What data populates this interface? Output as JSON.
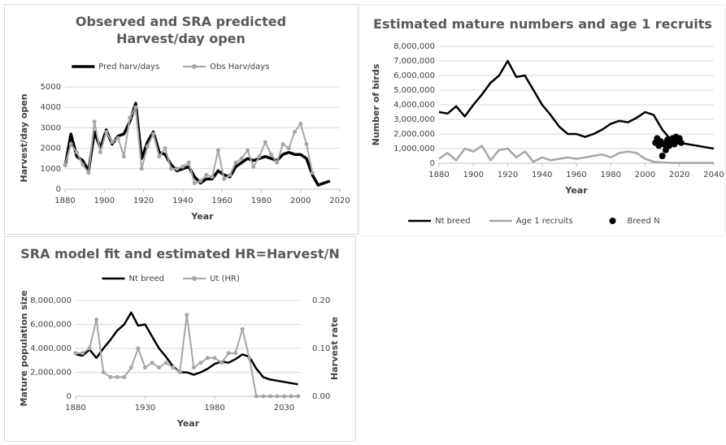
{
  "chart_data": [
    {
      "type": "line",
      "title": "Observed and SRA predicted Harvest/day open",
      "xlabel": "Year",
      "ylabel": "Harvest/day open",
      "x": [
        1880,
        1883,
        1886,
        1889,
        1892,
        1895,
        1898,
        1901,
        1904,
        1907,
        1910,
        1913,
        1916,
        1919,
        1922,
        1925,
        1928,
        1931,
        1934,
        1937,
        1940,
        1943,
        1946,
        1949,
        1952,
        1955,
        1958,
        1961,
        1964,
        1967,
        1970,
        1973,
        1976,
        1979,
        1982,
        1985,
        1988,
        1991,
        1994,
        1997,
        2000,
        2003,
        2006,
        2009,
        2012,
        2015
      ],
      "series": [
        {
          "name": "Pred harv/days",
          "color": "#000000",
          "line_width": 3.5,
          "values": [
            1100,
            2700,
            1600,
            1400,
            900,
            2800,
            2000,
            2900,
            2200,
            2600,
            2700,
            3300,
            4200,
            1500,
            2300,
            2800,
            1800,
            1700,
            1200,
            900,
            1000,
            1100,
            600,
            300,
            500,
            500,
            900,
            700,
            600,
            1100,
            1300,
            1500,
            1400,
            1500,
            1600,
            1500,
            1400,
            1700,
            1800,
            1700,
            1700,
            1500,
            700,
            200,
            300,
            400
          ]
        },
        {
          "name": "Obs Harv/days",
          "color": "#a6a6a6",
          "line_width": 2,
          "markers": true,
          "values": [
            1200,
            2200,
            1800,
            1200,
            800,
            3300,
            1800,
            2800,
            2300,
            2500,
            1600,
            3500,
            4000,
            1000,
            2100,
            2700,
            1600,
            2000,
            1000,
            1000,
            1100,
            1300,
            300,
            400,
            700,
            600,
            1900,
            500,
            700,
            1300,
            1500,
            1900,
            1100,
            1600,
            2300,
            1700,
            1300,
            2200,
            2000,
            2800,
            3200,
            2200,
            800,
            null,
            null,
            null
          ]
        }
      ],
      "xlim": [
        1880,
        2020
      ],
      "xticks": [
        1880,
        1900,
        1920,
        1940,
        1960,
        1980,
        2000,
        2020
      ],
      "ylim": [
        0,
        5000
      ],
      "yticks": [
        0,
        1000,
        2000,
        3000,
        4000,
        5000
      ],
      "grid": true
    },
    {
      "type": "line",
      "title": "Estimated mature numbers and age 1 recruits",
      "xlabel": "Year",
      "ylabel": "Number of birds",
      "x": [
        1880,
        1885,
        1890,
        1895,
        1900,
        1905,
        1910,
        1915,
        1920,
        1925,
        1930,
        1935,
        1940,
        1945,
        1950,
        1955,
        1960,
        1965,
        1970,
        1975,
        1980,
        1985,
        1990,
        1995,
        2000,
        2005,
        2010,
        2015,
        2020,
        2025,
        2030,
        2035,
        2040
      ],
      "series": [
        {
          "name": "Nt breed",
          "color": "#000000",
          "line_width": 2.5,
          "values": [
            3500000,
            3400000,
            3900000,
            3200000,
            4000000,
            4700000,
            5500000,
            6000000,
            7000000,
            5900000,
            6000000,
            5000000,
            4000000,
            3300000,
            2500000,
            2000000,
            2000000,
            1800000,
            2000000,
            2300000,
            2700000,
            2900000,
            2800000,
            3100000,
            3500000,
            3300000,
            2300000,
            1600000,
            1400000,
            1300000,
            1200000,
            1100000,
            1000000
          ]
        },
        {
          "name": "Age 1 recruits",
          "color": "#a6a6a6",
          "line_width": 2.5,
          "values": [
            300000,
            700000,
            200000,
            1000000,
            800000,
            1200000,
            200000,
            900000,
            1000000,
            400000,
            800000,
            100000,
            400000,
            200000,
            300000,
            400000,
            300000,
            400000,
            500000,
            600000,
            400000,
            700000,
            800000,
            700000,
            300000,
            100000,
            50000,
            30000,
            20000,
            20000,
            20000,
            20000,
            20000
          ]
        },
        {
          "name": "Breed N",
          "color": "#000000",
          "type": "scatter",
          "x": [
            2006,
            2007,
            2008,
            2009,
            2010,
            2011,
            2012,
            2013,
            2014,
            2015,
            2016,
            2017,
            2018,
            2019,
            2020,
            2021
          ],
          "values": [
            1400000,
            1700000,
            1200000,
            1500000,
            500000,
            1300000,
            900000,
            1600000,
            1200000,
            1400000,
            1700000,
            1300000,
            1800000,
            1500000,
            1700000,
            1400000
          ]
        }
      ],
      "xlim": [
        1880,
        2040
      ],
      "xticks": [
        1880,
        1900,
        1920,
        1940,
        1960,
        1980,
        2000,
        2020,
        2040
      ],
      "ylim": [
        0,
        8000000
      ],
      "yticks": [
        0,
        {
          "value": 1000000,
          "label": "1,000,000"
        },
        {
          "value": 2000000,
          "label": "2,000,000"
        },
        {
          "value": 3000000,
          "label": "3,000,000"
        },
        {
          "value": 4000000,
          "label": "4,000,000"
        },
        {
          "value": 5000000,
          "label": "5,000,000"
        },
        {
          "value": 6000000,
          "label": "6,000,000"
        },
        {
          "value": 7000000,
          "label": "7,000,000"
        },
        {
          "value": 8000000,
          "label": "8,000,000"
        }
      ],
      "grid": true
    },
    {
      "type": "line",
      "title": "SRA model fit and estimated HR=Harvest/N",
      "xlabel": "Year",
      "ylabel": "Mature population size",
      "y2label": "Harvest rate",
      "x": [
        1880,
        1885,
        1890,
        1895,
        1900,
        1905,
        1910,
        1915,
        1920,
        1925,
        1930,
        1935,
        1940,
        1945,
        1950,
        1955,
        1960,
        1965,
        1970,
        1975,
        1980,
        1985,
        1990,
        1995,
        2000,
        2005,
        2010,
        2015,
        2020,
        2025,
        2030,
        2035,
        2040
      ],
      "series": [
        {
          "name": "Nt breed",
          "color": "#000000",
          "line_width": 2.5,
          "values": [
            3500000,
            3400000,
            3900000,
            3200000,
            4000000,
            4700000,
            5500000,
            6000000,
            7000000,
            5900000,
            6000000,
            5000000,
            4000000,
            3300000,
            2500000,
            2000000,
            2000000,
            1800000,
            2000000,
            2300000,
            2700000,
            2900000,
            2800000,
            3100000,
            3500000,
            3300000,
            2300000,
            1600000,
            1400000,
            1300000,
            1200000,
            1100000,
            1000000
          ]
        },
        {
          "name": "Ut (HR)",
          "color": "#a6a6a6",
          "line_width": 2,
          "markers": true,
          "axis": "y2",
          "values": [
            0.09,
            0.09,
            0.1,
            0.16,
            0.05,
            0.04,
            0.04,
            0.04,
            0.06,
            0.1,
            0.06,
            0.07,
            0.06,
            0.07,
            0.06,
            0.05,
            0.17,
            0.06,
            0.07,
            0.08,
            0.08,
            0.07,
            0.09,
            0.09,
            0.14,
            0.08,
            0,
            0,
            0,
            0,
            0,
            0,
            0
          ]
        }
      ],
      "xlim": [
        1880,
        2042
      ],
      "xticks": [
        1880,
        1930,
        1980,
        2030
      ],
      "ylim": [
        0,
        8000000
      ],
      "yticks": [
        0,
        {
          "value": 2000000,
          "label": "2,000,000"
        },
        {
          "value": 4000000,
          "label": "4,000,000"
        },
        {
          "value": 6000000,
          "label": "6,000,000"
        },
        {
          "value": 8000000,
          "label": "8,000,000"
        }
      ],
      "y2lim": [
        0,
        0.2
      ],
      "y2ticks": [
        {
          "value": 0,
          "label": "0.00"
        },
        {
          "value": 0.1,
          "label": "0.10"
        },
        {
          "value": 0.2,
          "label": "0.20"
        }
      ],
      "grid": true
    }
  ]
}
